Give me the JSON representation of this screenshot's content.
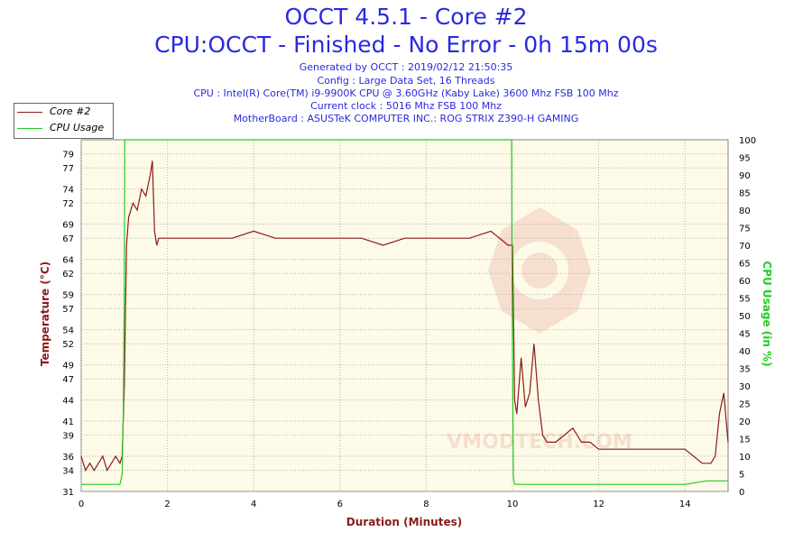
{
  "header": {
    "title_line1": "OCCT 4.5.1 - Core #2",
    "title_line2": "CPU:OCCT - Finished - No Error - 0h 15m 00s",
    "generated": "Generated by OCCT : 2019/02/12 21:50:35",
    "config": "Config : Large Data Set, 16 Threads",
    "cpu": "CPU : Intel(R) Core(TM) i9-9900K CPU @ 3.60GHz (Kaby Lake) 3600 Mhz FSB 100 Mhz",
    "clock": "Current clock : 5016 Mhz FSB 100 Mhz",
    "motherboard": "MotherBoard : ASUSTeK COMPUTER INC.: ROG STRIX Z390-H GAMING"
  },
  "colors": {
    "temperature": "#8b1a1a",
    "cpu_usage": "#22cc22",
    "plot_background": "#fdfbe8",
    "grid": "#b0b0b0",
    "title": "#2a2ae0"
  },
  "chart_data": {
    "type": "line",
    "xlabel": "Duration (Minutes)",
    "ylabel": "Temperature (°C)",
    "y2label": "CPU Usage (in %)",
    "xlim": [
      0,
      15
    ],
    "ylim": [
      31,
      81
    ],
    "y2lim": [
      0,
      100
    ],
    "x_ticks": [
      0,
      2,
      4,
      6,
      8,
      10,
      12,
      14
    ],
    "y_ticks": [
      31,
      34,
      36,
      39,
      41,
      44,
      47,
      49,
      52,
      54,
      57,
      59,
      62,
      64,
      67,
      69,
      72,
      74,
      77,
      79
    ],
    "y2_ticks": [
      0,
      5,
      10,
      15,
      20,
      25,
      30,
      35,
      40,
      45,
      50,
      55,
      60,
      65,
      70,
      75,
      80,
      85,
      90,
      95,
      100
    ],
    "grid": true,
    "legend_position": "top-left",
    "series": [
      {
        "name": "Core #2",
        "axis": "left",
        "x": [
          0,
          0.1,
          0.2,
          0.3,
          0.4,
          0.5,
          0.6,
          0.7,
          0.8,
          0.9,
          0.95,
          1.0,
          1.05,
          1.1,
          1.2,
          1.3,
          1.4,
          1.5,
          1.6,
          1.65,
          1.7,
          1.75,
          1.8,
          2.0,
          2.5,
          3.0,
          3.5,
          4.0,
          4.5,
          5.0,
          5.5,
          6.0,
          6.5,
          7.0,
          7.5,
          8.0,
          8.5,
          9.0,
          9.5,
          9.9,
          10.0,
          10.05,
          10.1,
          10.2,
          10.3,
          10.4,
          10.5,
          10.6,
          10.7,
          10.8,
          11.0,
          11.2,
          11.4,
          11.6,
          11.8,
          12.0,
          12.2,
          12.5,
          13.0,
          13.5,
          14.0,
          14.2,
          14.4,
          14.6,
          14.7,
          14.8,
          14.9,
          15.0
        ],
        "values": [
          36,
          34,
          35,
          34,
          35,
          36,
          34,
          35,
          36,
          35,
          36,
          46,
          66,
          70,
          72,
          71,
          74,
          73,
          76,
          78,
          68,
          66,
          67,
          67,
          67,
          67,
          67,
          68,
          67,
          67,
          67,
          67,
          67,
          66,
          67,
          67,
          67,
          67,
          68,
          66,
          66,
          44,
          42,
          50,
          43,
          45,
          52,
          44,
          39,
          38,
          38,
          39,
          40,
          38,
          38,
          37,
          37,
          37,
          37,
          37,
          37,
          36,
          35,
          35,
          36,
          42,
          45,
          38
        ]
      },
      {
        "name": "CPU Usage",
        "axis": "right",
        "x": [
          0,
          0.5,
          0.9,
          0.95,
          0.98,
          1.0,
          1.01,
          5.0,
          9.98,
          9.99,
          10.02,
          10.05,
          11.0,
          12.0,
          13.0,
          14.0,
          14.5,
          15.0
        ],
        "values": [
          2,
          2,
          2,
          5,
          25,
          60,
          100,
          100,
          100,
          60,
          4,
          2,
          2,
          2,
          2,
          2,
          3,
          3
        ]
      }
    ]
  },
  "watermark": "VMODTECH.COM"
}
